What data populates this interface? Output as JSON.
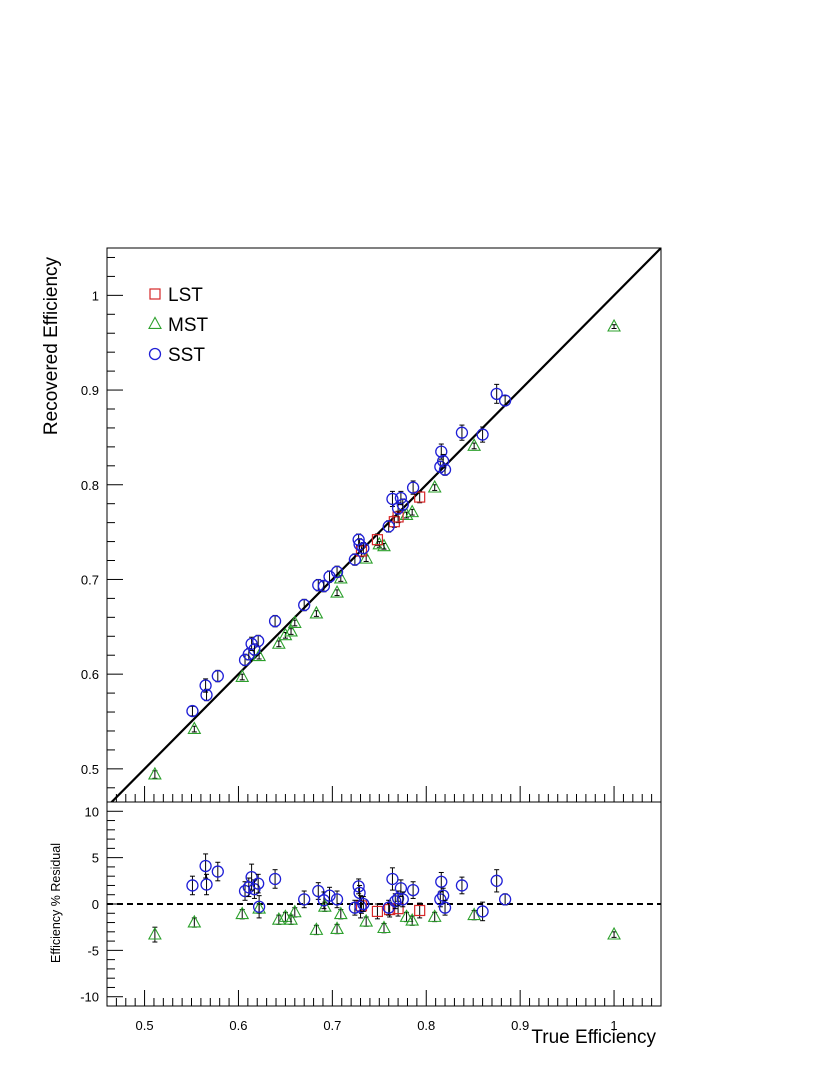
{
  "chart_data": [
    {
      "type": "scatter",
      "panel": "main",
      "xlabel": "",
      "ylabel": "Recovered Efficiency",
      "xlim": [
        0.46,
        1.05
      ],
      "ylim": [
        0.465,
        1.05
      ],
      "yticks": [
        0.5,
        0.6,
        0.7,
        0.8,
        0.9,
        1
      ],
      "ytick_labels": [
        "0.5",
        "0.6",
        "0.7",
        "0.8",
        "0.9",
        "1"
      ],
      "reference_line": "y = x",
      "grid": false,
      "legend_position": "top-left",
      "series": [
        {
          "name": "LST",
          "marker": "square",
          "color": "#d62728",
          "points": [
            {
              "x": 0.731,
              "y": 0.73,
              "err": 0.006
            },
            {
              "x": 0.748,
              "y": 0.742,
              "err": 0.006
            },
            {
              "x": 0.766,
              "y": 0.761,
              "err": 0.006
            },
            {
              "x": 0.77,
              "y": 0.766,
              "err": 0.006
            },
            {
              "x": 0.793,
              "y": 0.787,
              "err": 0.006
            }
          ]
        },
        {
          "name": "MST",
          "marker": "triangle",
          "color": "#2ca02c",
          "points": [
            {
              "x": 0.511,
              "y": 0.494,
              "err": 0.004
            },
            {
              "x": 0.553,
              "y": 0.542,
              "err": 0.003
            },
            {
              "x": 0.604,
              "y": 0.597,
              "err": 0.003
            },
            {
              "x": 0.622,
              "y": 0.619,
              "err": 0.003
            },
            {
              "x": 0.643,
              "y": 0.632,
              "err": 0.003
            },
            {
              "x": 0.65,
              "y": 0.641,
              "err": 0.003
            },
            {
              "x": 0.656,
              "y": 0.645,
              "err": 0.003
            },
            {
              "x": 0.66,
              "y": 0.654,
              "err": 0.003
            },
            {
              "x": 0.683,
              "y": 0.664,
              "err": 0.003
            },
            {
              "x": 0.705,
              "y": 0.686,
              "err": 0.003
            },
            {
              "x": 0.709,
              "y": 0.701,
              "err": 0.003
            },
            {
              "x": 0.736,
              "y": 0.722,
              "err": 0.003
            },
            {
              "x": 0.75,
              "y": 0.737,
              "err": 0.003
            },
            {
              "x": 0.755,
              "y": 0.735,
              "err": 0.003
            },
            {
              "x": 0.779,
              "y": 0.768,
              "err": 0.003
            },
            {
              "x": 0.785,
              "y": 0.771,
              "err": 0.003
            },
            {
              "x": 0.809,
              "y": 0.797,
              "err": 0.003
            },
            {
              "x": 0.851,
              "y": 0.841,
              "err": 0.003
            },
            {
              "x": 1.0,
              "y": 0.967,
              "err": 0.002
            }
          ]
        },
        {
          "name": "SST",
          "marker": "circle",
          "color": "#1f1fd6",
          "points": [
            {
              "x": 0.551,
              "y": 0.561,
              "err": 0.005
            },
            {
              "x": 0.565,
              "y": 0.588,
              "err": 0.007
            },
            {
              "x": 0.566,
              "y": 0.578,
              "err": 0.006
            },
            {
              "x": 0.578,
              "y": 0.598,
              "err": 0.006
            },
            {
              "x": 0.607,
              "y": 0.615,
              "err": 0.006
            },
            {
              "x": 0.611,
              "y": 0.621,
              "err": 0.006
            },
            {
              "x": 0.614,
              "y": 0.632,
              "err": 0.007
            },
            {
              "x": 0.617,
              "y": 0.626,
              "err": 0.006
            },
            {
              "x": 0.621,
              "y": 0.635,
              "err": 0.006
            },
            {
              "x": 0.639,
              "y": 0.656,
              "err": 0.006
            },
            {
              "x": 0.67,
              "y": 0.673,
              "err": 0.006
            },
            {
              "x": 0.685,
              "y": 0.694,
              "err": 0.006
            },
            {
              "x": 0.691,
              "y": 0.693,
              "err": 0.006
            },
            {
              "x": 0.697,
              "y": 0.703,
              "err": 0.006
            },
            {
              "x": 0.705,
              "y": 0.708,
              "err": 0.006
            },
            {
              "x": 0.724,
              "y": 0.721,
              "err": 0.006
            },
            {
              "x": 0.728,
              "y": 0.742,
              "err": 0.006
            },
            {
              "x": 0.729,
              "y": 0.737,
              "err": 0.006
            },
            {
              "x": 0.733,
              "y": 0.733,
              "err": 0.006
            },
            {
              "x": 0.76,
              "y": 0.756,
              "err": 0.006
            },
            {
              "x": 0.764,
              "y": 0.785,
              "err": 0.008
            },
            {
              "x": 0.77,
              "y": 0.775,
              "err": 0.006
            },
            {
              "x": 0.773,
              "y": 0.786,
              "err": 0.007
            },
            {
              "x": 0.775,
              "y": 0.779,
              "err": 0.006
            },
            {
              "x": 0.786,
              "y": 0.797,
              "err": 0.007
            },
            {
              "x": 0.815,
              "y": 0.819,
              "err": 0.006
            },
            {
              "x": 0.816,
              "y": 0.835,
              "err": 0.008
            },
            {
              "x": 0.818,
              "y": 0.825,
              "err": 0.007
            },
            {
              "x": 0.82,
              "y": 0.816,
              "err": 0.006
            },
            {
              "x": 0.838,
              "y": 0.855,
              "err": 0.008
            },
            {
              "x": 0.86,
              "y": 0.853,
              "err": 0.008
            },
            {
              "x": 0.875,
              "y": 0.896,
              "err": 0.01
            },
            {
              "x": 0.884,
              "y": 0.889,
              "err": 0.005
            }
          ]
        }
      ]
    },
    {
      "type": "scatter",
      "panel": "residual",
      "xlabel": "True Efficiency",
      "ylabel": "Efficiency % Residual",
      "xlim": [
        0.46,
        1.05
      ],
      "ylim": [
        -11,
        11
      ],
      "xticks": [
        0.5,
        0.6,
        0.7,
        0.8,
        0.9,
        1
      ],
      "xtick_labels": [
        "0.5",
        "0.6",
        "0.7",
        "0.8",
        "0.9",
        "1"
      ],
      "yticks": [
        -10,
        -5,
        0,
        5,
        10
      ],
      "ytick_labels": [
        "-10",
        "-5",
        "0",
        "5",
        "10"
      ],
      "reference_line": "y = 0 (dashed)",
      "grid": false,
      "series": [
        {
          "name": "LST",
          "marker": "square",
          "color": "#d62728",
          "points": [
            {
              "x": 0.731,
              "y": -0.2,
              "err": 0.8
            },
            {
              "x": 0.748,
              "y": -0.8,
              "err": 0.8
            },
            {
              "x": 0.761,
              "y": -0.6,
              "err": 0.8
            },
            {
              "x": 0.77,
              "y": -0.5,
              "err": 0.8
            },
            {
              "x": 0.793,
              "y": -0.7,
              "err": 0.8
            }
          ]
        },
        {
          "name": "MST",
          "marker": "triangle",
          "color": "#2ca02c",
          "points": [
            {
              "x": 0.511,
              "y": -3.3,
              "err": 0.8
            },
            {
              "x": 0.553,
              "y": -2.0,
              "err": 0.5
            },
            {
              "x": 0.604,
              "y": -1.1,
              "err": 0.5
            },
            {
              "x": 0.622,
              "y": -0.5,
              "err": 0.5
            },
            {
              "x": 0.643,
              "y": -1.7,
              "err": 0.5
            },
            {
              "x": 0.65,
              "y": -1.4,
              "err": 0.5
            },
            {
              "x": 0.656,
              "y": -1.7,
              "err": 0.5
            },
            {
              "x": 0.66,
              "y": -0.9,
              "err": 0.5
            },
            {
              "x": 0.683,
              "y": -2.8,
              "err": 0.5
            },
            {
              "x": 0.692,
              "y": -0.3,
              "err": 0.5
            },
            {
              "x": 0.705,
              "y": -2.7,
              "err": 0.5
            },
            {
              "x": 0.709,
              "y": -1.1,
              "err": 0.5
            },
            {
              "x": 0.736,
              "y": -1.9,
              "err": 0.5
            },
            {
              "x": 0.755,
              "y": -2.6,
              "err": 0.5
            },
            {
              "x": 0.779,
              "y": -1.4,
              "err": 0.5
            },
            {
              "x": 0.785,
              "y": -1.8,
              "err": 0.5
            },
            {
              "x": 0.809,
              "y": -1.4,
              "err": 0.5
            },
            {
              "x": 0.851,
              "y": -1.2,
              "err": 0.5
            },
            {
              "x": 1.0,
              "y": -3.3,
              "err": 0.3
            }
          ]
        },
        {
          "name": "SST",
          "marker": "circle",
          "color": "#1f1fd6",
          "points": [
            {
              "x": 0.551,
              "y": 2.0,
              "err": 1.0
            },
            {
              "x": 0.565,
              "y": 4.1,
              "err": 1.3
            },
            {
              "x": 0.566,
              "y": 2.1,
              "err": 1.1
            },
            {
              "x": 0.578,
              "y": 3.5,
              "err": 1.0
            },
            {
              "x": 0.607,
              "y": 1.4,
              "err": 1.0
            },
            {
              "x": 0.611,
              "y": 1.8,
              "err": 1.0
            },
            {
              "x": 0.614,
              "y": 2.9,
              "err": 1.4
            },
            {
              "x": 0.617,
              "y": 1.6,
              "err": 1.0
            },
            {
              "x": 0.621,
              "y": 2.2,
              "err": 1.0
            },
            {
              "x": 0.622,
              "y": -0.3,
              "err": 1.2
            },
            {
              "x": 0.639,
              "y": 2.7,
              "err": 1.0
            },
            {
              "x": 0.67,
              "y": 0.5,
              "err": 0.9
            },
            {
              "x": 0.685,
              "y": 1.4,
              "err": 0.9
            },
            {
              "x": 0.691,
              "y": 0.4,
              "err": 0.9
            },
            {
              "x": 0.697,
              "y": 0.9,
              "err": 0.9
            },
            {
              "x": 0.705,
              "y": 0.5,
              "err": 0.9
            },
            {
              "x": 0.724,
              "y": -0.4,
              "err": 0.8
            },
            {
              "x": 0.728,
              "y": 1.9,
              "err": 0.8
            },
            {
              "x": 0.729,
              "y": 1.2,
              "err": 0.8
            },
            {
              "x": 0.73,
              "y": -0.3,
              "err": 1.2
            },
            {
              "x": 0.733,
              "y": 0.0,
              "err": 0.8
            },
            {
              "x": 0.76,
              "y": -0.4,
              "err": 0.8
            },
            {
              "x": 0.764,
              "y": 2.7,
              "err": 1.2
            },
            {
              "x": 0.767,
              "y": 0.3,
              "err": 0.8
            },
            {
              "x": 0.77,
              "y": 0.6,
              "err": 0.8
            },
            {
              "x": 0.773,
              "y": 1.7,
              "err": 0.9
            },
            {
              "x": 0.775,
              "y": 0.5,
              "err": 0.8
            },
            {
              "x": 0.786,
              "y": 1.5,
              "err": 0.9
            },
            {
              "x": 0.815,
              "y": 0.5,
              "err": 0.8
            },
            {
              "x": 0.816,
              "y": 2.4,
              "err": 1.0
            },
            {
              "x": 0.818,
              "y": 0.9,
              "err": 0.8
            },
            {
              "x": 0.82,
              "y": -0.4,
              "err": 0.8
            },
            {
              "x": 0.838,
              "y": 2.0,
              "err": 0.9
            },
            {
              "x": 0.86,
              "y": -0.8,
              "err": 1.0
            },
            {
              "x": 0.875,
              "y": 2.5,
              "err": 1.2
            },
            {
              "x": 0.884,
              "y": 0.5,
              "err": 0.6
            }
          ]
        }
      ]
    }
  ]
}
